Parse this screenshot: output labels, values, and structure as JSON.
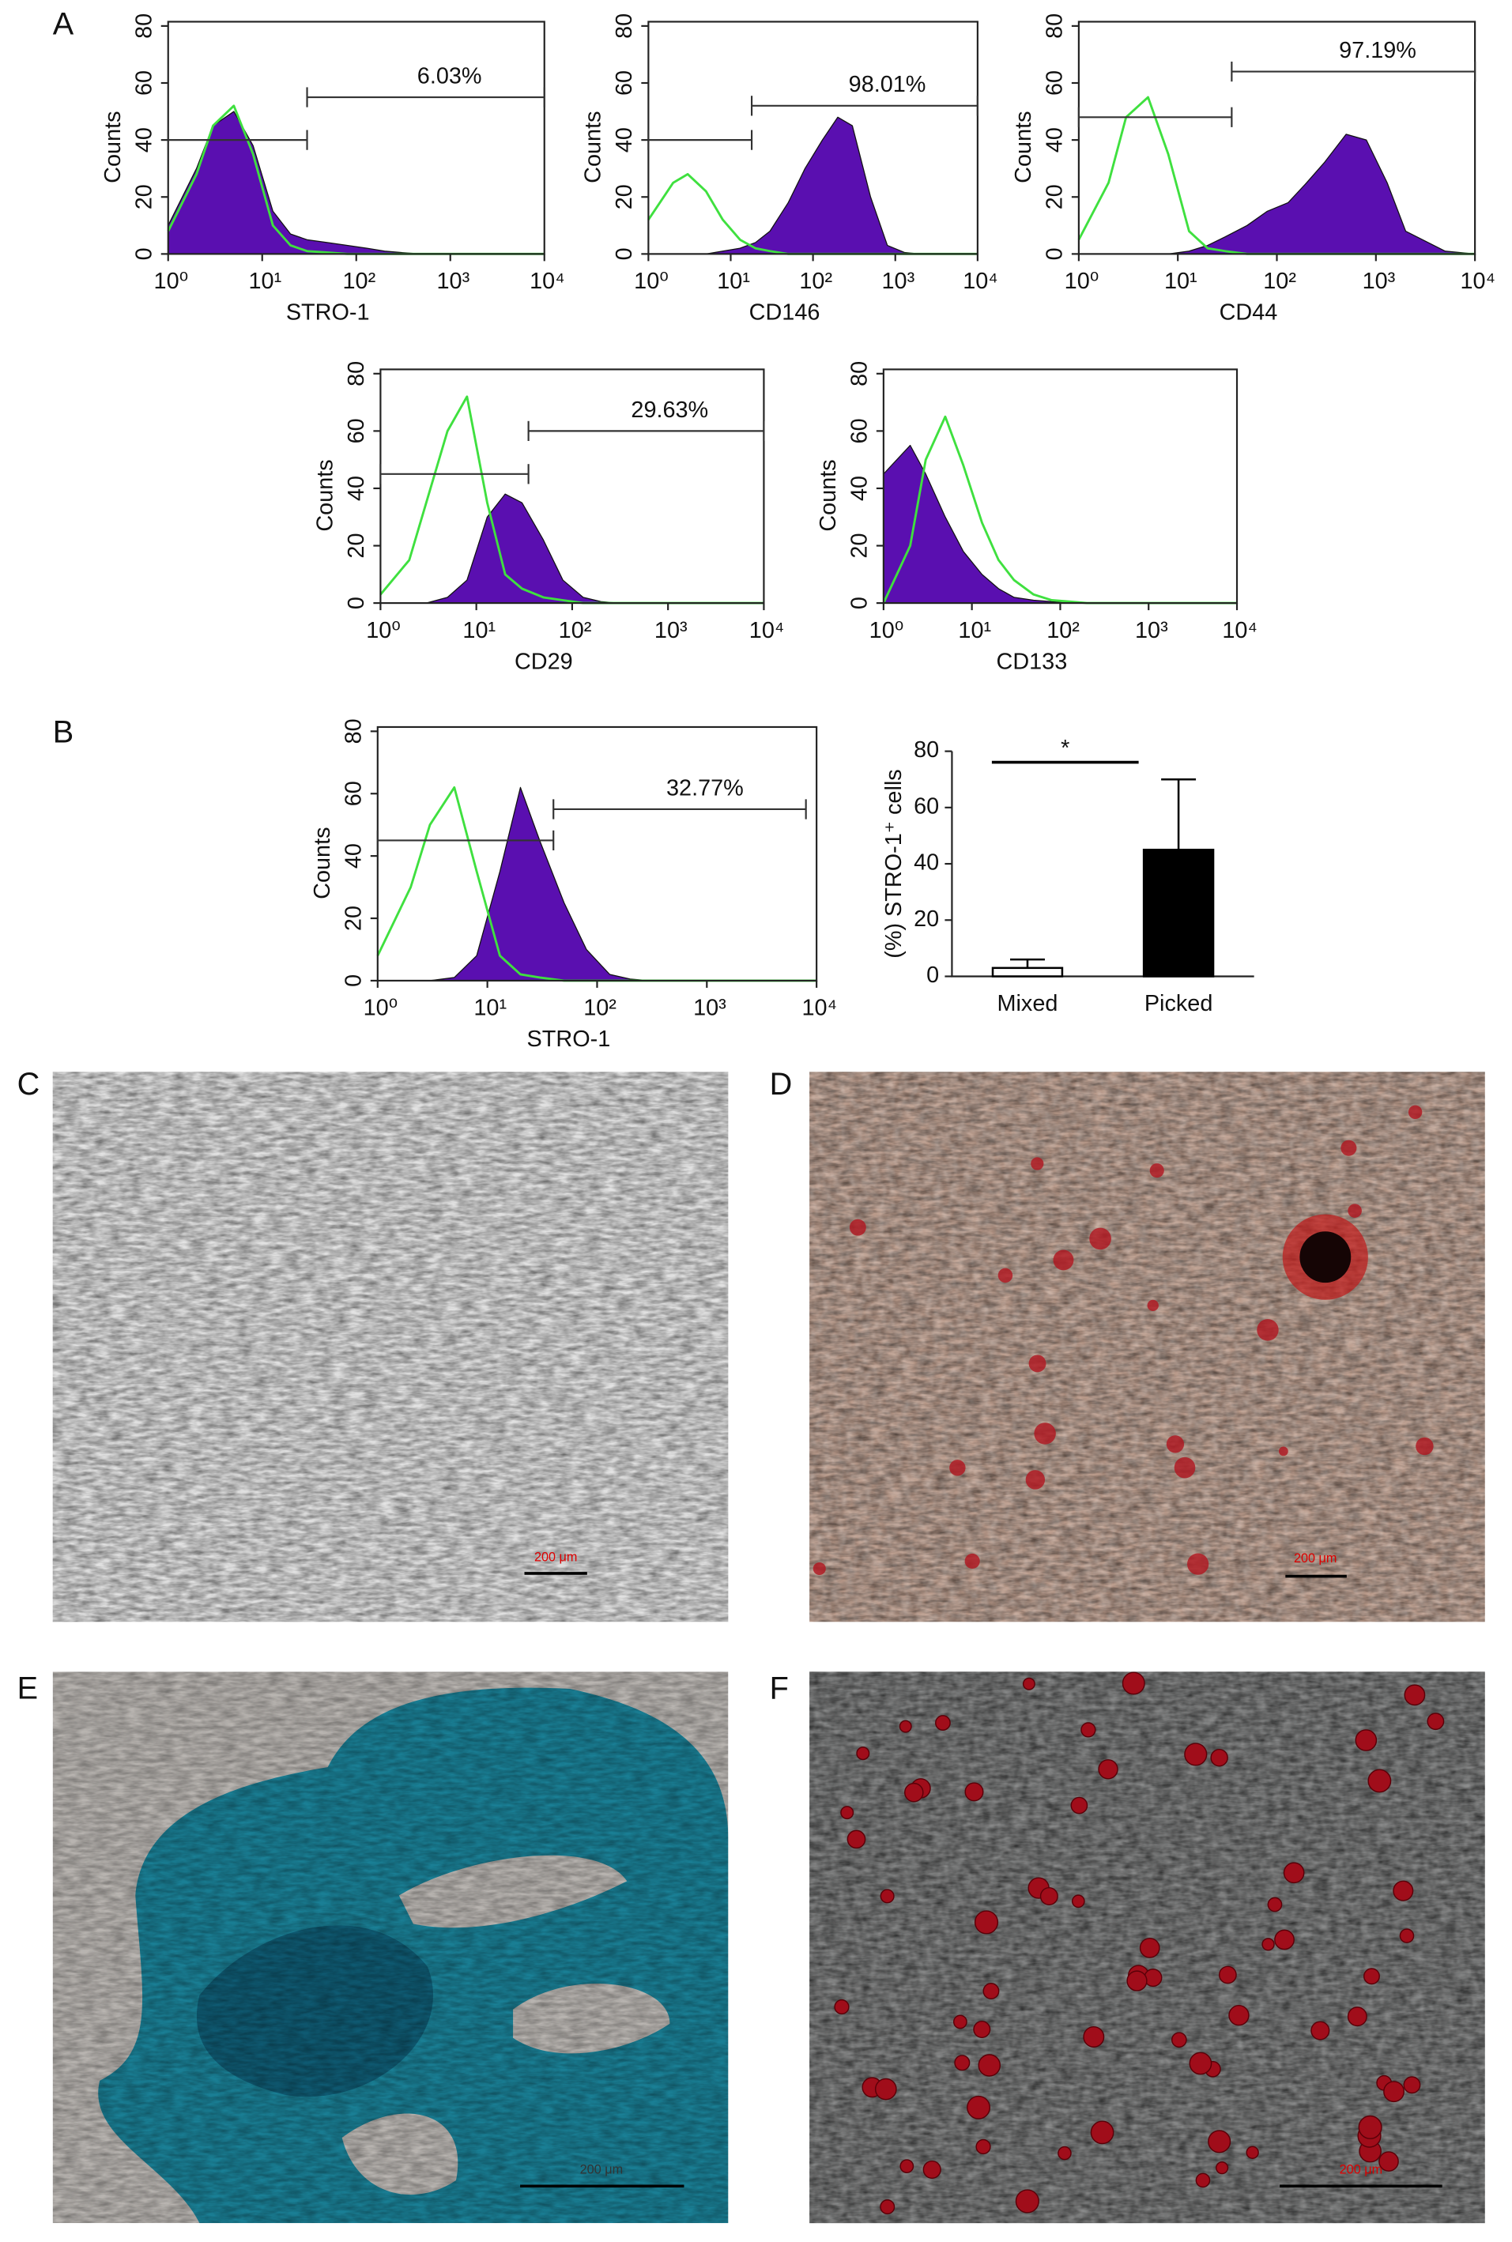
{
  "figure": {
    "labels": [
      "A",
      "B",
      "C",
      "D",
      "E",
      "F"
    ]
  },
  "chart_data": [
    {
      "type": "area",
      "xlabel": "STRO-1",
      "ylabel": "Counts",
      "xscale": "log",
      "xlim": [
        1,
        10000
      ],
      "xticks": [
        {
          "value": 1,
          "label": "10⁰"
        },
        {
          "value": 10,
          "label": "10¹"
        },
        {
          "value": 100,
          "label": "10²"
        },
        {
          "value": 1000,
          "label": "10³"
        },
        {
          "value": 10000,
          "label": "10⁴"
        }
      ],
      "ylim": [
        0,
        80
      ],
      "yticks": [
        0,
        20,
        40,
        60,
        80
      ],
      "x": [
        1,
        2,
        3,
        5,
        8,
        13,
        20,
        30,
        50,
        80,
        130,
        200,
        300,
        500,
        800,
        1300,
        2000,
        5000,
        10000
      ],
      "series": [
        {
          "color": "#5a0fb0",
          "filled": true,
          "values": [
            10,
            30,
            45,
            50,
            38,
            15,
            7,
            5,
            4,
            3,
            2,
            1,
            0.5,
            0,
            0,
            0,
            0,
            0,
            0
          ]
        },
        {
          "color": "#3fe03f",
          "filled": false,
          "values": [
            8,
            28,
            45,
            52,
            35,
            10,
            3,
            1,
            0.5,
            0,
            0,
            0,
            0,
            0,
            0,
            0,
            0,
            0,
            0
          ]
        }
      ],
      "gates": [
        {
          "from": 1,
          "to": 30,
          "level": 40
        },
        {
          "from": 30,
          "to": 10000,
          "level": 55,
          "percent": "6.03%"
        }
      ]
    },
    {
      "type": "area",
      "xlabel": "CD146",
      "ylabel": "Counts",
      "xscale": "log",
      "xlim": [
        1,
        10000
      ],
      "xticks": [
        {
          "value": 1,
          "label": "10⁰"
        },
        {
          "value": 10,
          "label": "10¹"
        },
        {
          "value": 100,
          "label": "10²"
        },
        {
          "value": 1000,
          "label": "10³"
        },
        {
          "value": 10000,
          "label": "10⁴"
        }
      ],
      "ylim": [
        0,
        80
      ],
      "yticks": [
        0,
        20,
        40,
        60,
        80
      ],
      "x": [
        1,
        2,
        3,
        5,
        8,
        13,
        20,
        30,
        50,
        80,
        130,
        200,
        300,
        500,
        800,
        1300,
        2000,
        5000,
        10000
      ],
      "series": [
        {
          "color": "#5a0fb0",
          "filled": true,
          "values": [
            0,
            0,
            0,
            0,
            1,
            2,
            4,
            8,
            18,
            30,
            40,
            48,
            45,
            20,
            3,
            0.5,
            0,
            0,
            0
          ]
        },
        {
          "color": "#3fe03f",
          "filled": false,
          "values": [
            12,
            25,
            28,
            22,
            12,
            5,
            2,
            1,
            0,
            0,
            0,
            0,
            0,
            0,
            0,
            0,
            0,
            0,
            0
          ]
        }
      ],
      "gates": [
        {
          "from": 1,
          "to": 18,
          "level": 40
        },
        {
          "from": 18,
          "to": 10000,
          "level": 52,
          "percent": "98.01%"
        }
      ]
    },
    {
      "type": "area",
      "xlabel": "CD44",
      "ylabel": "Counts",
      "xscale": "log",
      "xlim": [
        1,
        10000
      ],
      "xticks": [
        {
          "value": 1,
          "label": "10⁰"
        },
        {
          "value": 10,
          "label": "10¹"
        },
        {
          "value": 100,
          "label": "10²"
        },
        {
          "value": 1000,
          "label": "10³"
        },
        {
          "value": 10000,
          "label": "10⁴"
        }
      ],
      "ylim": [
        0,
        80
      ],
      "yticks": [
        0,
        20,
        40,
        60,
        80
      ],
      "x": [
        1,
        2,
        3,
        5,
        8,
        13,
        20,
        30,
        50,
        80,
        130,
        200,
        300,
        500,
        800,
        1300,
        2000,
        5000,
        10000
      ],
      "series": [
        {
          "color": "#5a0fb0",
          "filled": true,
          "values": [
            0,
            0,
            0,
            0,
            0,
            1,
            3,
            6,
            10,
            15,
            18,
            25,
            32,
            42,
            40,
            25,
            8,
            1,
            0
          ]
        },
        {
          "color": "#3fe03f",
          "filled": false,
          "values": [
            5,
            25,
            48,
            55,
            35,
            8,
            2,
            1,
            0,
            0,
            0,
            0,
            0,
            0,
            0,
            0,
            0,
            0,
            0
          ]
        }
      ],
      "gates": [
        {
          "from": 1,
          "to": 35,
          "level": 48
        },
        {
          "from": 35,
          "to": 10000,
          "level": 64,
          "percent": "97.19%"
        }
      ]
    },
    {
      "type": "area",
      "xlabel": "CD29",
      "ylabel": "Counts",
      "xscale": "log",
      "xlim": [
        1,
        10000
      ],
      "xticks": [
        {
          "value": 1,
          "label": "10⁰"
        },
        {
          "value": 10,
          "label": "10¹"
        },
        {
          "value": 100,
          "label": "10²"
        },
        {
          "value": 1000,
          "label": "10³"
        },
        {
          "value": 10000,
          "label": "10⁴"
        }
      ],
      "ylim": [
        0,
        80
      ],
      "yticks": [
        0,
        20,
        40,
        60,
        80
      ],
      "x": [
        1,
        2,
        3,
        5,
        8,
        13,
        20,
        30,
        50,
        80,
        130,
        200,
        300,
        500,
        800,
        1300,
        2000,
        5000,
        10000
      ],
      "series": [
        {
          "color": "#5a0fb0",
          "filled": true,
          "values": [
            0,
            0,
            0,
            2,
            8,
            30,
            38,
            35,
            22,
            8,
            2,
            0.5,
            0,
            0,
            0,
            0,
            0,
            0,
            0
          ]
        },
        {
          "color": "#3fe03f",
          "filled": false,
          "values": [
            3,
            15,
            35,
            60,
            72,
            35,
            10,
            5,
            2,
            1,
            0,
            0,
            0,
            0,
            0,
            0,
            0,
            0,
            0
          ]
        }
      ],
      "gates": [
        {
          "from": 1,
          "to": 35,
          "level": 45
        },
        {
          "from": 35,
          "to": 10000,
          "level": 60,
          "percent": "29.63%"
        }
      ]
    },
    {
      "type": "area",
      "xlabel": "CD133",
      "ylabel": "Counts",
      "xscale": "log",
      "xlim": [
        1,
        10000
      ],
      "xticks": [
        {
          "value": 1,
          "label": "10⁰"
        },
        {
          "value": 10,
          "label": "10¹"
        },
        {
          "value": 100,
          "label": "10²"
        },
        {
          "value": 1000,
          "label": "10³"
        },
        {
          "value": 10000,
          "label": "10⁴"
        }
      ],
      "ylim": [
        0,
        80
      ],
      "yticks": [
        0,
        20,
        40,
        60,
        80
      ],
      "x": [
        1,
        2,
        3,
        5,
        8,
        13,
        20,
        30,
        50,
        80,
        130,
        200,
        300,
        500,
        800,
        1300,
        2000,
        5000,
        10000
      ],
      "series": [
        {
          "color": "#5a0fb0",
          "filled": true,
          "values": [
            45,
            55,
            45,
            30,
            18,
            10,
            5,
            2,
            1,
            0.5,
            0,
            0,
            0,
            0,
            0,
            0,
            0,
            0,
            0
          ]
        },
        {
          "color": "#3fe03f",
          "filled": false,
          "values": [
            0,
            20,
            50,
            65,
            48,
            28,
            15,
            8,
            3,
            1,
            0.5,
            0,
            0,
            0,
            0,
            0,
            0,
            0,
            0
          ]
        }
      ],
      "gates": []
    },
    {
      "type": "area",
      "xlabel": "STRO-1",
      "ylabel": "Counts",
      "xscale": "log",
      "xlim": [
        1,
        10000
      ],
      "xticks": [
        {
          "value": 1,
          "label": "10⁰"
        },
        {
          "value": 10,
          "label": "10¹"
        },
        {
          "value": 100,
          "label": "10²"
        },
        {
          "value": 1000,
          "label": "10³"
        },
        {
          "value": 10000,
          "label": "10⁴"
        }
      ],
      "ylim": [
        0,
        80
      ],
      "yticks": [
        0,
        20,
        40,
        60,
        80
      ],
      "x": [
        1,
        2,
        3,
        5,
        8,
        13,
        20,
        30,
        50,
        80,
        130,
        200,
        300,
        500,
        800,
        1300,
        2000,
        5000,
        10000
      ],
      "series": [
        {
          "color": "#5a0fb0",
          "filled": true,
          "values": [
            0,
            0,
            0,
            1,
            8,
            35,
            62,
            45,
            25,
            10,
            2,
            0.5,
            0,
            0,
            0,
            0,
            0,
            0,
            0
          ]
        },
        {
          "color": "#3fe03f",
          "filled": false,
          "values": [
            8,
            30,
            50,
            62,
            35,
            8,
            2,
            1,
            0,
            0,
            0,
            0,
            0,
            0,
            0,
            0,
            0,
            0,
            0
          ]
        }
      ],
      "gates": [
        {
          "from": 1,
          "to": 40,
          "level": 45
        },
        {
          "from": 40,
          "to": 8000,
          "level": 55,
          "percent": "32.77%"
        }
      ]
    },
    {
      "type": "bar",
      "ylabel": "(%) STRO-1⁺ cells",
      "categories": [
        "Mixed",
        "Picked"
      ],
      "values": [
        3,
        45
      ],
      "errors": [
        3,
        25
      ],
      "colors": [
        "#ffffff",
        "#000000"
      ],
      "ylim": [
        0,
        80
      ],
      "yticks": [
        0,
        20,
        40,
        60,
        80
      ],
      "annotation": "*"
    }
  ],
  "images": [
    {
      "scale_bar": "200 μm"
    },
    {
      "scale_bar": "200 μm"
    },
    {
      "scale_bar": "200 μm"
    },
    {
      "scale_bar": "200 μm"
    }
  ]
}
